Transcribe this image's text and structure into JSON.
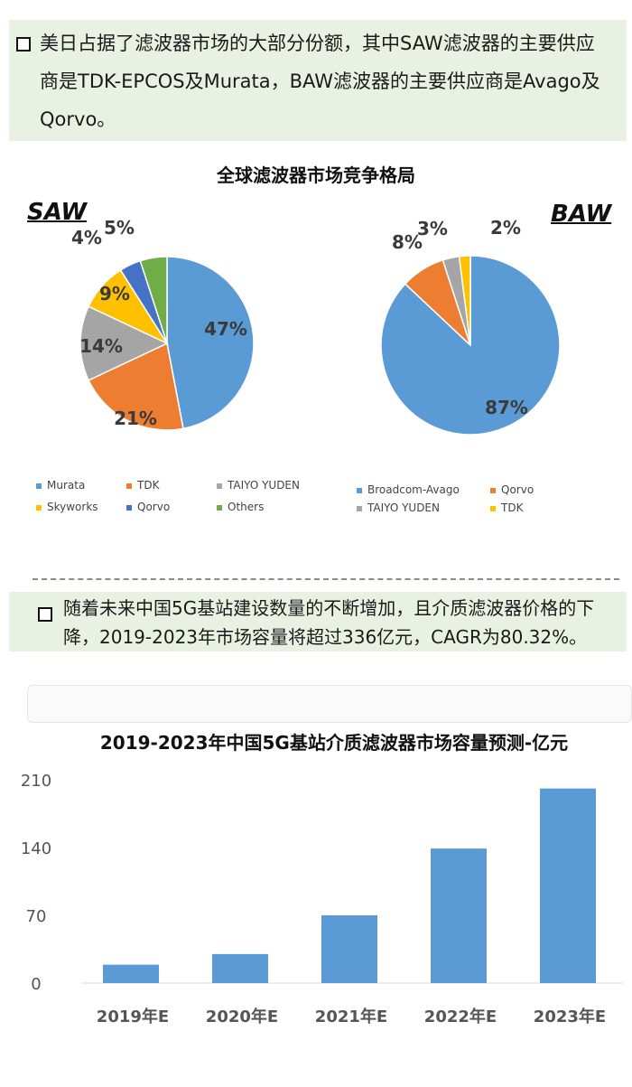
{
  "notes": {
    "first": "美日占据了滤波器市场的大部分份额，其中SAW滤波器的主要供应商是TDK-EPCOS及Murata，BAW滤波器的主要供应商是Avago及Qorvo。",
    "second": "随着未来中国5G基站建设数量的不断增加，且介质滤波器价格的下降，2019-2023年市场容量将超过336亿元，CAGR为80.32%。"
  },
  "pie_section": {
    "title": "全球滤波器市场竞争格局",
    "saw_label": "SAW",
    "baw_label": "BAW"
  },
  "bar_section": {
    "title": "2019-2023年中国5G基站介质滤波器市场容量预测-亿元"
  },
  "chart_data": [
    {
      "type": "pie",
      "name": "SAW",
      "labels": [
        "Murata",
        "TDK",
        "TAIYO YUDEN",
        "Skyworks",
        "Qorvo",
        "Others"
      ],
      "values": [
        47,
        21,
        14,
        9,
        4,
        5
      ],
      "value_labels": [
        "47%",
        "21%",
        "14%",
        "9%",
        "4%",
        "5%"
      ],
      "colors": [
        "#5b9bd5",
        "#ed7d31",
        "#a5a5a5",
        "#ffc000",
        "#4472c4",
        "#70ad47"
      ],
      "legend_position": "bottom"
    },
    {
      "type": "pie",
      "name": "BAW",
      "labels": [
        "Broadcom-Avago",
        "Qorvo",
        "TAIYO YUDEN",
        "TDK"
      ],
      "values": [
        87,
        8,
        3,
        2
      ],
      "value_labels": [
        "87%",
        "8%",
        "3%",
        "2%"
      ],
      "colors": [
        "#5b9bd5",
        "#ed7d31",
        "#a5a5a5",
        "#ffc000"
      ],
      "legend_position": "bottom"
    },
    {
      "type": "bar",
      "categories": [
        "2019年E",
        "2020年E",
        "2021年E",
        "2022年E",
        "2023年E"
      ],
      "values": [
        19,
        30,
        70,
        139,
        201
      ],
      "ylim": [
        0,
        210
      ],
      "yticks": [
        "0",
        "70",
        "140",
        "210"
      ],
      "grid": false,
      "color": "#5b9bd5"
    }
  ]
}
